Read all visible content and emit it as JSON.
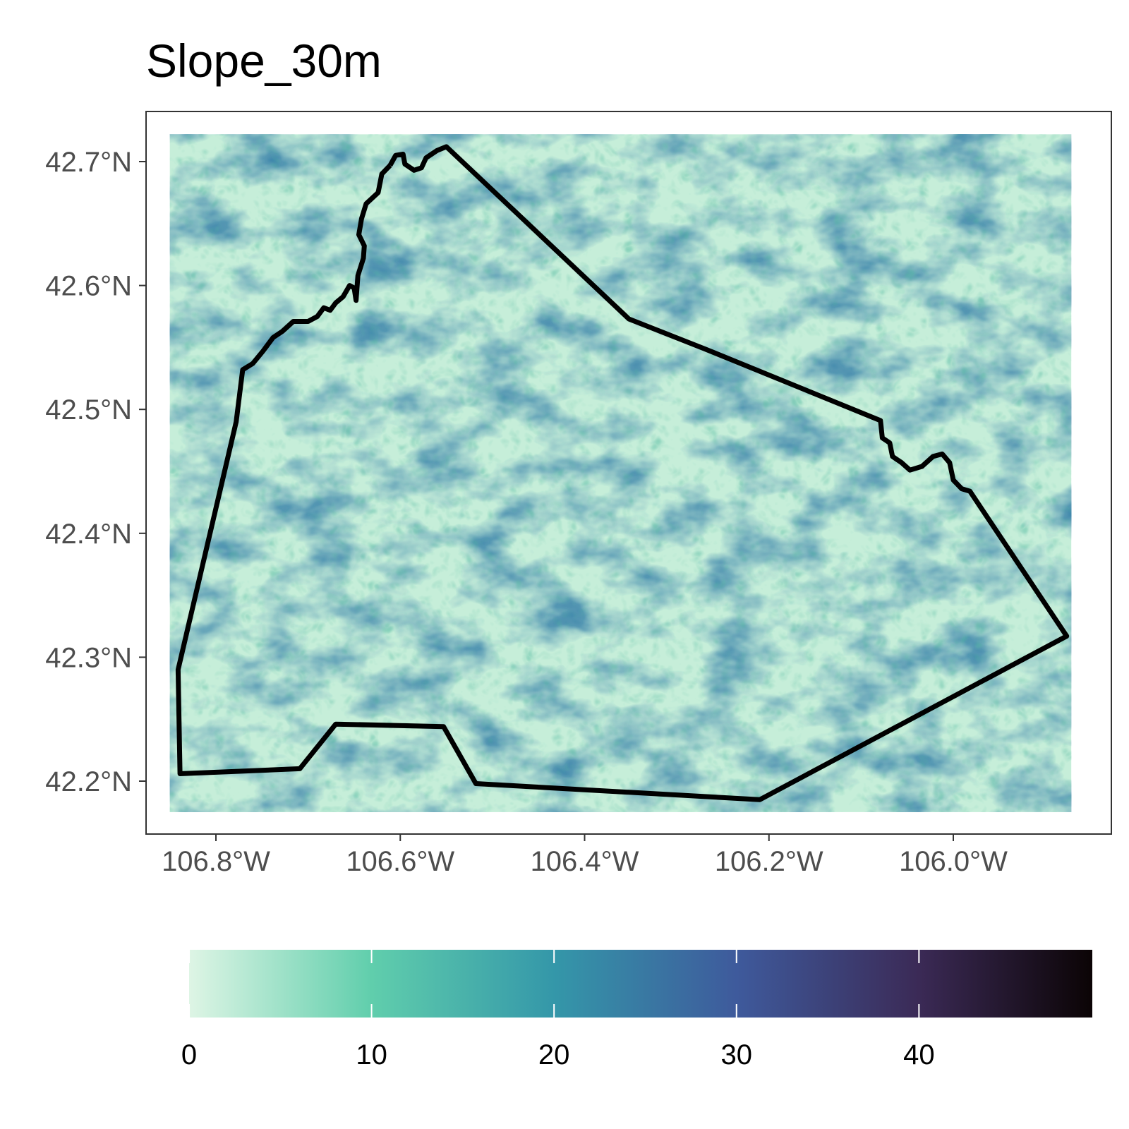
{
  "title": "Slope_30m",
  "map": {
    "x_axis": {
      "ticks": [
        {
          "value": -106.8,
          "label": "106.8°W"
        },
        {
          "value": -106.6,
          "label": "106.6°W"
        },
        {
          "value": -106.4,
          "label": "106.4°W"
        },
        {
          "value": -106.2,
          "label": "106.2°W"
        },
        {
          "value": -106.0,
          "label": "106.0°W"
        }
      ]
    },
    "y_axis": {
      "ticks": [
        {
          "value": 42.7,
          "label": "42.7°N"
        },
        {
          "value": 42.6,
          "label": "42.6°N"
        },
        {
          "value": 42.5,
          "label": "42.5°N"
        },
        {
          "value": 42.4,
          "label": "42.4°N"
        },
        {
          "value": 42.3,
          "label": "42.3°N"
        },
        {
          "value": 42.2,
          "label": "42.2°N"
        }
      ]
    },
    "raster_extent": {
      "lon": [
        -106.85,
        -105.872
      ],
      "lat": [
        42.175,
        42.722
      ]
    },
    "boundary_lonlat": [
      [
        -106.611,
        42.697
      ],
      [
        -106.605,
        42.705
      ],
      [
        -106.597,
        42.706
      ],
      [
        -106.595,
        42.698
      ],
      [
        -106.585,
        42.693
      ],
      [
        -106.577,
        42.695
      ],
      [
        -106.572,
        42.703
      ],
      [
        -106.56,
        42.709
      ],
      [
        -106.55,
        42.712
      ],
      [
        -106.352,
        42.573
      ],
      [
        -106.27,
        42.549
      ],
      [
        -106.079,
        42.491
      ],
      [
        -106.077,
        42.477
      ],
      [
        -106.069,
        42.473
      ],
      [
        -106.066,
        42.462
      ],
      [
        -106.056,
        42.457
      ],
      [
        -106.047,
        42.451
      ],
      [
        -106.034,
        42.454
      ],
      [
        -106.022,
        42.462
      ],
      [
        -106.012,
        42.464
      ],
      [
        -106.004,
        42.457
      ],
      [
        -106.0,
        42.443
      ],
      [
        -105.991,
        42.436
      ],
      [
        -105.982,
        42.434
      ],
      [
        -105.877,
        42.317
      ],
      [
        -106.21,
        42.185
      ],
      [
        -106.518,
        42.198
      ],
      [
        -106.553,
        42.244
      ],
      [
        -106.67,
        42.246
      ],
      [
        -106.709,
        42.21
      ],
      [
        -106.839,
        42.206
      ],
      [
        -106.841,
        42.29
      ],
      [
        -106.778,
        42.49
      ],
      [
        -106.771,
        42.532
      ],
      [
        -106.76,
        42.537
      ],
      [
        -106.749,
        42.547
      ],
      [
        -106.738,
        42.558
      ],
      [
        -106.728,
        42.563
      ],
      [
        -106.716,
        42.571
      ],
      [
        -106.7,
        42.571
      ],
      [
        -106.69,
        42.575
      ],
      [
        -106.683,
        42.582
      ],
      [
        -106.676,
        42.58
      ],
      [
        -106.67,
        42.586
      ],
      [
        -106.662,
        42.591
      ],
      [
        -106.655,
        42.6
      ],
      [
        -106.65,
        42.598
      ],
      [
        -106.648,
        42.588
      ],
      [
        -106.646,
        42.608
      ],
      [
        -106.64,
        42.622
      ],
      [
        -106.639,
        42.632
      ],
      [
        -106.645,
        42.641
      ],
      [
        -106.642,
        42.654
      ],
      [
        -106.637,
        42.666
      ],
      [
        -106.624,
        42.675
      ],
      [
        -106.62,
        42.69
      ],
      [
        -106.611,
        42.697
      ]
    ]
  },
  "colorbar": {
    "min": 0,
    "max": 49.5,
    "ticks": [
      {
        "value": 0,
        "label": "0"
      },
      {
        "value": 10,
        "label": "10"
      },
      {
        "value": 20,
        "label": "20"
      },
      {
        "value": 30,
        "label": "30"
      },
      {
        "value": 40,
        "label": "40"
      }
    ],
    "stops": [
      {
        "value": 0,
        "color": "#def5e5"
      },
      {
        "value": 10,
        "color": "#60ceac"
      },
      {
        "value": 20,
        "color": "#3497a9"
      },
      {
        "value": 30,
        "color": "#3e5a9c"
      },
      {
        "value": 40,
        "color": "#3b2a56"
      },
      {
        "value": 49.5,
        "color": "#0b0405"
      }
    ]
  },
  "colors": {
    "boundary": "#000000",
    "panel_border": "#333333",
    "tick_text": "#4d4d4d"
  }
}
